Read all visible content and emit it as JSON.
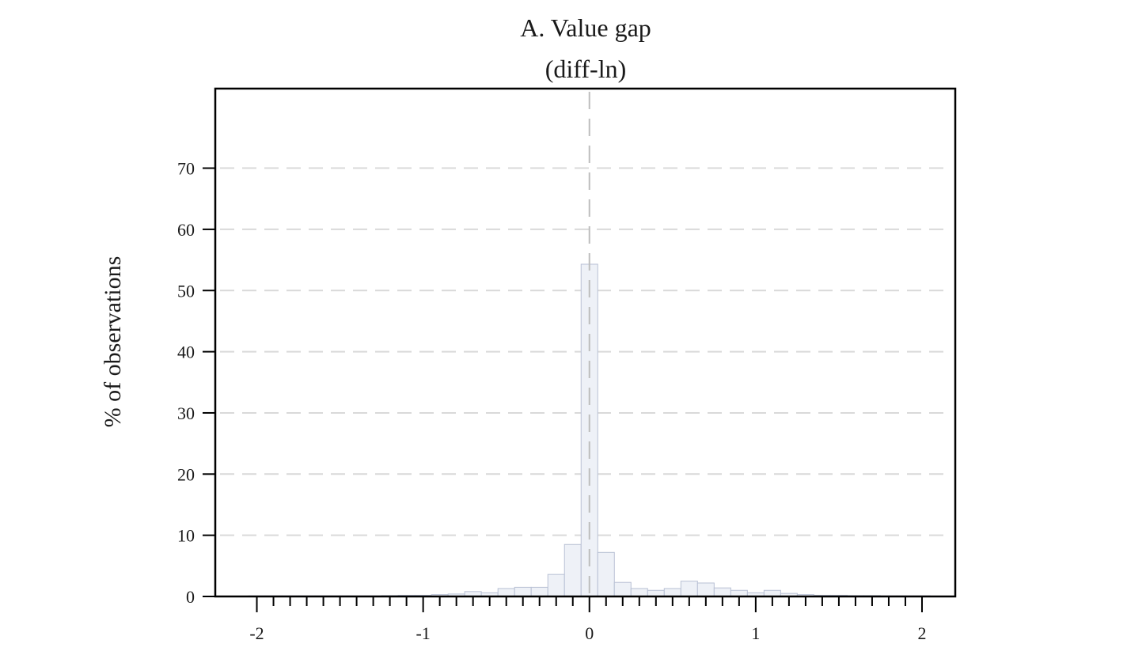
{
  "chart_data": {
    "type": "bar",
    "title": "A. Value gap",
    "subtitle": "(diff-ln)",
    "xlabel": "",
    "ylabel": "% of observations",
    "xlim": [
      -2.25,
      2.2
    ],
    "ylim": [
      0,
      83
    ],
    "x_ticks": [
      -2,
      -1,
      0,
      1,
      2
    ],
    "x_tick_labels": [
      "-2",
      "-1",
      "0",
      "1",
      "2"
    ],
    "x_minor_step": 0.1,
    "y_ticks": [
      0,
      10,
      20,
      30,
      40,
      50,
      60,
      70
    ],
    "y_tick_labels": [
      "0",
      "10",
      "20",
      "30",
      "40",
      "50",
      "60",
      "70"
    ],
    "grid": "horizontal dashed",
    "reference_line_x": 0,
    "legend": "none",
    "bar_width": 0.1,
    "bar_fill": "#eef1f7",
    "bar_stroke": "#b8c0d4",
    "bars": [
      {
        "x": -2.0,
        "y": 0.1
      },
      {
        "x": -1.9,
        "y": 0.1
      },
      {
        "x": -1.8,
        "y": 0.1
      },
      {
        "x": -1.7,
        "y": 0.1
      },
      {
        "x": -1.6,
        "y": 0.1
      },
      {
        "x": -1.5,
        "y": 0.1
      },
      {
        "x": -1.4,
        "y": 0.1
      },
      {
        "x": -1.3,
        "y": 0.1
      },
      {
        "x": -1.2,
        "y": 0.15
      },
      {
        "x": -1.1,
        "y": 0.2
      },
      {
        "x": -1.0,
        "y": 0.2
      },
      {
        "x": -0.9,
        "y": 0.3
      },
      {
        "x": -0.8,
        "y": 0.4
      },
      {
        "x": -0.7,
        "y": 0.8
      },
      {
        "x": -0.6,
        "y": 0.6
      },
      {
        "x": -0.5,
        "y": 1.3
      },
      {
        "x": -0.4,
        "y": 1.5
      },
      {
        "x": -0.3,
        "y": 1.5
      },
      {
        "x": -0.2,
        "y": 3.6
      },
      {
        "x": -0.1,
        "y": 8.5
      },
      {
        "x": 0.0,
        "y": 54.3
      },
      {
        "x": 0.1,
        "y": 7.2
      },
      {
        "x": 0.2,
        "y": 2.3
      },
      {
        "x": 0.3,
        "y": 1.3
      },
      {
        "x": 0.4,
        "y": 1.0
      },
      {
        "x": 0.5,
        "y": 1.3
      },
      {
        "x": 0.6,
        "y": 2.5
      },
      {
        "x": 0.7,
        "y": 2.2
      },
      {
        "x": 0.8,
        "y": 1.4
      },
      {
        "x": 0.9,
        "y": 1.0
      },
      {
        "x": 1.0,
        "y": 0.6
      },
      {
        "x": 1.1,
        "y": 1.0
      },
      {
        "x": 1.2,
        "y": 0.5
      },
      {
        "x": 1.3,
        "y": 0.3
      },
      {
        "x": 1.4,
        "y": 0.2
      },
      {
        "x": 1.5,
        "y": 0.2
      },
      {
        "x": 1.6,
        "y": 0.15
      },
      {
        "x": 1.7,
        "y": 0.15
      },
      {
        "x": 1.8,
        "y": 0.1
      },
      {
        "x": 1.9,
        "y": 0.1
      },
      {
        "x": 2.0,
        "y": 0.1
      }
    ]
  }
}
